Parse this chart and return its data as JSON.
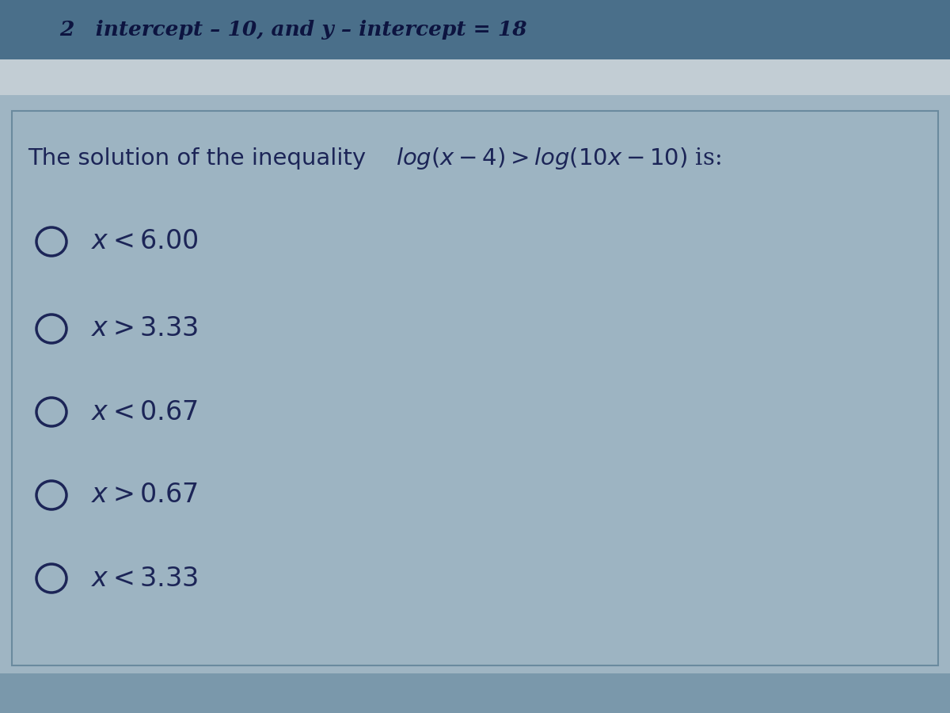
{
  "header_text": "2   intercept – 10, and y – intercept = 18",
  "question_normal": "The solution of the inequality ",
  "question_math": "$\\mathit{log}(x-4) > \\mathit{log}(10x-10)$",
  "question_end": " is:",
  "options": [
    "$x < 6.00$",
    "$x > 3.33$",
    "$x < 0.67$",
    "$x > 0.67$",
    "$x < 3.33$"
  ],
  "bg_outer": "#8fa8bc",
  "bg_separator": "#c2cdd4",
  "bg_main": "#9fb5c3",
  "bg_header": "#4a6f8a",
  "bg_content": "#9db4c2",
  "text_color_dark": "#1c2557",
  "text_color_header": "#0d1440",
  "border_color": "#6a8a9e",
  "fig_width": 12.0,
  "fig_height": 9.0
}
